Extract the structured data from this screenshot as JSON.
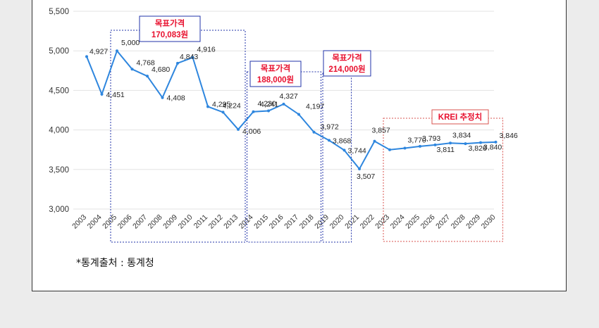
{
  "chart_data": {
    "type": "line",
    "title": "",
    "xlabel": "",
    "ylabel": "",
    "ylim": [
      3000,
      5500
    ],
    "yticks": [
      "3,000",
      "3,500",
      "4,000",
      "4,500",
      "5,000",
      "5,500"
    ],
    "grid": true,
    "x": [
      "2003",
      "2004",
      "2005",
      "2006",
      "2007",
      "2008",
      "2009",
      "2010",
      "2011",
      "2012",
      "2013",
      "2014",
      "2015",
      "2016",
      "2017",
      "2018",
      "2019",
      "2020",
      "2021",
      "2022",
      "2023",
      "2024",
      "2025",
      "2026",
      "2027",
      "2028",
      "2029",
      "2030"
    ],
    "values": [
      4927,
      4451,
      5000,
      4768,
      4680,
      4408,
      4843,
      4916,
      4295,
      4224,
      4006,
      4230,
      4241,
      4327,
      4197,
      3972,
      3868,
      3744,
      3507,
      3857,
      3750,
      3770,
      3793,
      3811,
      3834,
      3826,
      3840,
      3846
    ],
    "value_labels": [
      "4,927",
      "4,451",
      "5,000",
      "4,768",
      "4,680",
      "4,408",
      "4,843",
      "4,916",
      "4,295",
      "4,224",
      "4,006",
      "4,230",
      "4,241",
      "4,327",
      "4,197",
      "3,972",
      "3,868",
      "3,744",
      "3,507",
      "3,857",
      "",
      "3,770",
      "3,793",
      "3,811",
      "3,834",
      "3,826",
      "3,840",
      "3,846"
    ],
    "line_color": "#2e86de",
    "annotations": [
      {
        "lines": [
          "목표가격",
          "170,083원"
        ],
        "from": "2005",
        "to": "2013",
        "box_color": "#2233aa",
        "text_color": "#e8102e"
      },
      {
        "lines": [
          "목표가격",
          "188,000원"
        ],
        "from": "2014",
        "to": "2018",
        "box_color": "#2233aa",
        "text_color": "#e8102e"
      },
      {
        "lines": [
          "목표가격",
          "214,000원"
        ],
        "from": "2019",
        "to": "2020",
        "box_color": "#2233aa",
        "text_color": "#e8102e"
      },
      {
        "lines": [
          "KREI 추정치"
        ],
        "from": "2023",
        "to": "2030",
        "box_color": "#d9534f",
        "text_color": "#e8102e"
      }
    ]
  },
  "source_note": "*통계출처 : 통계청"
}
